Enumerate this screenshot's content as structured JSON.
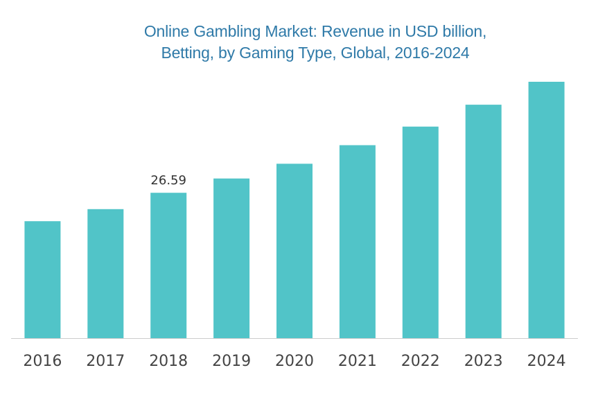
{
  "chart_data": {
    "type": "bar",
    "title_lines": [
      "Online Gambling Market: Revenue in USD billion,",
      "Betting, by Gaming Type, Global, 2016-2024"
    ],
    "categories": [
      "2016",
      "2017",
      "2018",
      "2019",
      "2020",
      "2021",
      "2022",
      "2023",
      "2024"
    ],
    "values": [
      21.4,
      23.6,
      26.59,
      29.2,
      31.9,
      35.3,
      38.7,
      42.7,
      46.9
    ],
    "data_labels": [
      {
        "category": "2018",
        "text": "26.59"
      }
    ],
    "xlabel": "",
    "ylabel": "",
    "ylim": [
      0,
      46.9
    ],
    "grid": false,
    "legend": "none",
    "colors": {
      "bar": "#51c4c8",
      "axis": "#cccccc",
      "title": "#2f7aa8",
      "tick_label": "#444444",
      "data_label": "#333333"
    }
  }
}
